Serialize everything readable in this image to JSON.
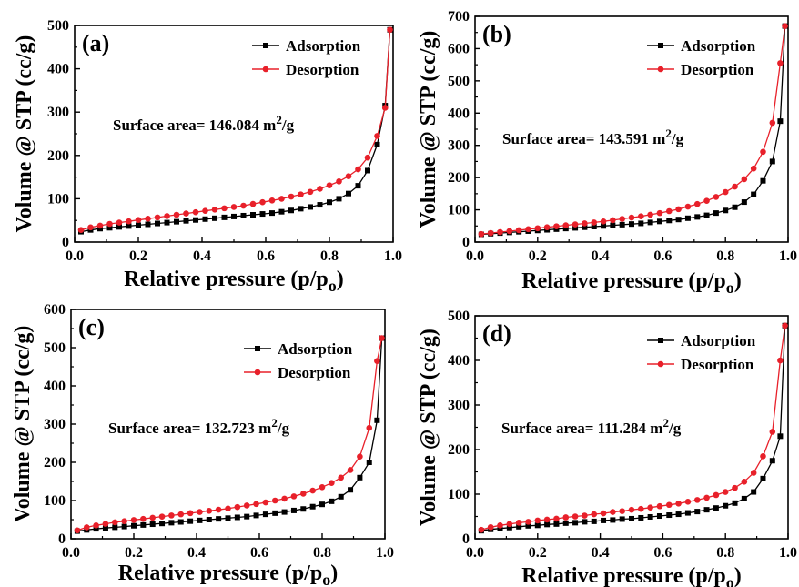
{
  "figure": {
    "subscript_o": "o"
  },
  "chart_data": [
    {
      "type": "line",
      "panel": "(a)",
      "xlabel": "Relative pressure (p/p",
      "ylabel": "Volume @ STP (cc/g)",
      "xlim": [
        0.0,
        1.0
      ],
      "ylim": [
        0,
        500
      ],
      "xticks": [
        "0.0",
        "0.2",
        "0.4",
        "0.6",
        "0.8",
        "1.0"
      ],
      "yticks": [
        "0",
        "100",
        "200",
        "300",
        "400",
        "500"
      ],
      "annotation": {
        "text": "Surface area= 146.084 m",
        "sup": "2",
        "tail": "/g"
      },
      "legend_position": "top-right",
      "series": [
        {
          "name": "Adsorption",
          "color": "#000000",
          "marker": "square",
          "x": [
            0.02,
            0.05,
            0.08,
            0.11,
            0.14,
            0.17,
            0.2,
            0.23,
            0.26,
            0.29,
            0.32,
            0.35,
            0.38,
            0.41,
            0.44,
            0.47,
            0.5,
            0.53,
            0.56,
            0.59,
            0.62,
            0.65,
            0.68,
            0.71,
            0.74,
            0.77,
            0.8,
            0.83,
            0.86,
            0.89,
            0.92,
            0.95,
            0.975,
            0.99
          ],
          "y": [
            24,
            28,
            31,
            33,
            35,
            37,
            39,
            41,
            43,
            45,
            47,
            49,
            51,
            53,
            55,
            57,
            59,
            61,
            63,
            65,
            67,
            70,
            73,
            77,
            81,
            86,
            92,
            100,
            112,
            130,
            165,
            225,
            315,
            490
          ]
        },
        {
          "name": "Desorption",
          "color": "#e8202a",
          "marker": "circle",
          "x": [
            0.02,
            0.05,
            0.08,
            0.11,
            0.14,
            0.17,
            0.2,
            0.23,
            0.26,
            0.29,
            0.32,
            0.35,
            0.38,
            0.41,
            0.44,
            0.47,
            0.5,
            0.53,
            0.56,
            0.59,
            0.62,
            0.65,
            0.68,
            0.71,
            0.74,
            0.77,
            0.8,
            0.83,
            0.86,
            0.89,
            0.92,
            0.95,
            0.975,
            0.99
          ],
          "y": [
            28,
            34,
            38,
            42,
            45,
            48,
            51,
            54,
            57,
            60,
            63,
            66,
            69,
            72,
            75,
            78,
            81,
            84,
            88,
            92,
            96,
            100,
            105,
            110,
            116,
            123,
            131,
            140,
            152,
            168,
            195,
            245,
            310,
            490
          ]
        }
      ]
    },
    {
      "type": "line",
      "panel": "(b)",
      "xlabel": "Relative pressure (p/p",
      "ylabel": "Volume @ STP (cc/g)",
      "xlim": [
        0.0,
        1.0
      ],
      "ylim": [
        0,
        700
      ],
      "xticks": [
        "0.0",
        "0.2",
        "0.4",
        "0.6",
        "0.8",
        "1.0"
      ],
      "yticks": [
        "0",
        "100",
        "200",
        "300",
        "400",
        "500",
        "600",
        "700"
      ],
      "annotation": {
        "text": "Surface area= 143.591 m",
        "sup": "2",
        "tail": "/g"
      },
      "legend_position": "top-right",
      "series": [
        {
          "name": "Adsorption",
          "color": "#000000",
          "marker": "square",
          "x": [
            0.02,
            0.05,
            0.08,
            0.11,
            0.14,
            0.17,
            0.2,
            0.23,
            0.26,
            0.29,
            0.32,
            0.35,
            0.38,
            0.41,
            0.44,
            0.47,
            0.5,
            0.53,
            0.56,
            0.59,
            0.62,
            0.65,
            0.68,
            0.71,
            0.74,
            0.77,
            0.8,
            0.83,
            0.86,
            0.89,
            0.92,
            0.95,
            0.975,
            0.99
          ],
          "y": [
            24,
            26,
            28,
            30,
            32,
            34,
            36,
            38,
            40,
            42,
            44,
            46,
            48,
            50,
            52,
            54,
            56,
            58,
            61,
            64,
            67,
            70,
            74,
            78,
            83,
            90,
            98,
            108,
            124,
            148,
            190,
            250,
            375,
            670
          ]
        },
        {
          "name": "Desorption",
          "color": "#e8202a",
          "marker": "circle",
          "x": [
            0.02,
            0.05,
            0.08,
            0.11,
            0.14,
            0.17,
            0.2,
            0.23,
            0.26,
            0.29,
            0.32,
            0.35,
            0.38,
            0.41,
            0.44,
            0.47,
            0.5,
            0.53,
            0.56,
            0.59,
            0.62,
            0.65,
            0.68,
            0.71,
            0.74,
            0.77,
            0.8,
            0.83,
            0.86,
            0.89,
            0.92,
            0.95,
            0.975,
            0.99
          ],
          "y": [
            25,
            28,
            31,
            34,
            37,
            40,
            43,
            46,
            49,
            52,
            55,
            58,
            61,
            64,
            68,
            72,
            76,
            80,
            85,
            90,
            96,
            102,
            110,
            118,
            128,
            140,
            155,
            172,
            195,
            228,
            280,
            370,
            555,
            670
          ]
        }
      ]
    },
    {
      "type": "line",
      "panel": "(c)",
      "xlabel": "Relative pressure (p/p",
      "ylabel": "Volume @ STP (cc/g)",
      "xlim": [
        0.0,
        1.0
      ],
      "ylim": [
        0,
        600
      ],
      "xticks": [
        "0.0",
        "0.2",
        "0.4",
        "0.6",
        "0.8",
        "1.0"
      ],
      "yticks": [
        "0",
        "100",
        "200",
        "300",
        "400",
        "500",
        "600"
      ],
      "annotation": {
        "text": "Surface area= 132.723 m",
        "sup": "2",
        "tail": "/g"
      },
      "legend_position": "top-right",
      "series": [
        {
          "name": "Adsorption",
          "color": "#000000",
          "marker": "square",
          "x": [
            0.02,
            0.05,
            0.08,
            0.11,
            0.14,
            0.17,
            0.2,
            0.23,
            0.26,
            0.29,
            0.32,
            0.35,
            0.38,
            0.41,
            0.44,
            0.47,
            0.5,
            0.53,
            0.56,
            0.59,
            0.62,
            0.65,
            0.68,
            0.71,
            0.74,
            0.77,
            0.8,
            0.83,
            0.86,
            0.89,
            0.92,
            0.95,
            0.975,
            0.99
          ],
          "y": [
            20,
            23,
            26,
            28,
            30,
            32,
            34,
            36,
            38,
            40,
            42,
            44,
            46,
            48,
            50,
            52,
            54,
            56,
            58,
            61,
            64,
            67,
            70,
            74,
            78,
            84,
            90,
            98,
            110,
            128,
            160,
            200,
            310,
            525
          ]
        },
        {
          "name": "Desorption",
          "color": "#e8202a",
          "marker": "circle",
          "x": [
            0.02,
            0.05,
            0.08,
            0.11,
            0.14,
            0.17,
            0.2,
            0.23,
            0.26,
            0.29,
            0.32,
            0.35,
            0.38,
            0.41,
            0.44,
            0.47,
            0.5,
            0.53,
            0.56,
            0.59,
            0.62,
            0.65,
            0.68,
            0.71,
            0.74,
            0.77,
            0.8,
            0.83,
            0.86,
            0.89,
            0.92,
            0.95,
            0.975,
            0.99
          ],
          "y": [
            22,
            30,
            35,
            39,
            43,
            46,
            49,
            52,
            55,
            58,
            61,
            64,
            67,
            70,
            73,
            76,
            79,
            83,
            87,
            91,
            95,
            100,
            105,
            111,
            118,
            126,
            135,
            146,
            160,
            180,
            215,
            290,
            465,
            525
          ]
        }
      ]
    },
    {
      "type": "line",
      "panel": "(d)",
      "xlabel": "Relative pressure (p/p",
      "ylabel": "Volume @ STP (cc/g)",
      "xlim": [
        0.0,
        1.0
      ],
      "ylim": [
        0,
        500
      ],
      "xticks": [
        "0.0",
        "0.2",
        "0.4",
        "0.6",
        "0.8",
        "1.0"
      ],
      "yticks": [
        "0",
        "100",
        "200",
        "300",
        "400",
        "500"
      ],
      "annotation": {
        "text": "Surface area= 111.284 m",
        "sup": "2",
        "tail": "/g"
      },
      "legend_position": "top-right",
      "series": [
        {
          "name": "Adsorption",
          "color": "#000000",
          "marker": "square",
          "x": [
            0.02,
            0.05,
            0.08,
            0.11,
            0.14,
            0.17,
            0.2,
            0.23,
            0.26,
            0.29,
            0.32,
            0.35,
            0.38,
            0.41,
            0.44,
            0.47,
            0.5,
            0.53,
            0.56,
            0.59,
            0.62,
            0.65,
            0.68,
            0.71,
            0.74,
            0.77,
            0.8,
            0.83,
            0.86,
            0.89,
            0.92,
            0.95,
            0.975,
            0.99
          ],
          "y": [
            18,
            21,
            23,
            25,
            27,
            29,
            30,
            32,
            33,
            35,
            36,
            38,
            39,
            41,
            42,
            44,
            45,
            47,
            49,
            51,
            53,
            55,
            58,
            61,
            65,
            69,
            74,
            80,
            90,
            105,
            135,
            175,
            230,
            478
          ]
        },
        {
          "name": "Desorption",
          "color": "#e8202a",
          "marker": "circle",
          "x": [
            0.02,
            0.05,
            0.08,
            0.11,
            0.14,
            0.17,
            0.2,
            0.23,
            0.26,
            0.29,
            0.32,
            0.35,
            0.38,
            0.41,
            0.44,
            0.47,
            0.5,
            0.53,
            0.56,
            0.59,
            0.62,
            0.65,
            0.68,
            0.71,
            0.74,
            0.77,
            0.8,
            0.83,
            0.86,
            0.89,
            0.92,
            0.95,
            0.975,
            0.99
          ],
          "y": [
            20,
            26,
            30,
            33,
            36,
            38,
            41,
            43,
            45,
            48,
            50,
            52,
            55,
            57,
            60,
            62,
            65,
            67,
            70,
            73,
            76,
            79,
            83,
            87,
            92,
            98,
            105,
            114,
            128,
            148,
            185,
            240,
            400,
            478
          ]
        }
      ]
    }
  ]
}
